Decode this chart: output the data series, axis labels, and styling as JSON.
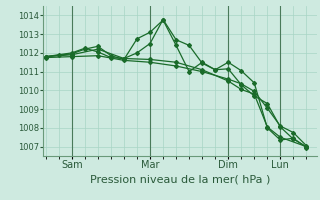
{
  "background_color": "#ceeae0",
  "grid_color": "#a8d5c5",
  "line_color": "#1a6b2a",
  "xlabel": "Pression niveau de la mer( hPa )",
  "ylim": [
    1006.5,
    1014.5
  ],
  "yticks": [
    1007,
    1008,
    1009,
    1010,
    1011,
    1012,
    1013,
    1014
  ],
  "x_tick_labels": [
    "Sam",
    "Mar",
    "Dim",
    "Lun"
  ],
  "x_tick_positions": [
    1,
    4,
    7,
    9
  ],
  "xlim": [
    -0.1,
    10.4
  ],
  "series": [
    {
      "x": [
        0,
        1,
        2,
        3,
        4,
        5,
        6,
        7,
        7.5,
        8,
        8.5,
        9,
        10
      ],
      "y": [
        1011.8,
        1011.9,
        1012.2,
        1011.7,
        1011.65,
        1011.5,
        1011.1,
        1010.5,
        1010.05,
        1009.8,
        1008.05,
        1007.5,
        1007.0
      ]
    },
    {
      "x": [
        0,
        1,
        1.5,
        2,
        2.5,
        3,
        3.5,
        4,
        4.5,
        5,
        5.5,
        6,
        6.5,
        7,
        7.5,
        8,
        8.5,
        9,
        9.5,
        10
      ],
      "y": [
        1011.8,
        1011.95,
        1012.2,
        1012.35,
        1011.85,
        1011.65,
        1012.75,
        1013.1,
        1013.75,
        1012.4,
        1011.0,
        1011.5,
        1011.1,
        1011.15,
        1010.3,
        1009.7,
        1009.3,
        1008.05,
        1007.4,
        1007.0
      ]
    },
    {
      "x": [
        0,
        0.5,
        1,
        1.5,
        2,
        2.5,
        3,
        3.5,
        4,
        4.5,
        5,
        5.5,
        6,
        6.5,
        7,
        7.5,
        8,
        8.5,
        9,
        9.5,
        10
      ],
      "y": [
        1011.8,
        1011.9,
        1012.0,
        1012.25,
        1012.05,
        1011.75,
        1011.7,
        1012.0,
        1012.5,
        1013.78,
        1012.7,
        1012.4,
        1011.45,
        1011.1,
        1011.5,
        1011.05,
        1010.4,
        1008.0,
        1007.35,
        1007.45,
        1006.95
      ]
    },
    {
      "x": [
        0,
        1,
        2,
        3,
        4,
        5,
        6,
        7,
        7.5,
        8,
        8.5,
        9,
        9.5,
        10
      ],
      "y": [
        1011.75,
        1011.8,
        1011.85,
        1011.6,
        1011.5,
        1011.3,
        1011.0,
        1010.6,
        1010.35,
        1009.95,
        1009.05,
        1008.1,
        1007.75,
        1007.05
      ]
    }
  ],
  "vline_positions": [
    1,
    4,
    7,
    9
  ],
  "vline_color": "#4a7a5a",
  "markersize": 2.0,
  "linewidth": 0.9,
  "xlabel_fontsize": 8,
  "ytick_fontsize": 6,
  "xtick_fontsize": 7
}
